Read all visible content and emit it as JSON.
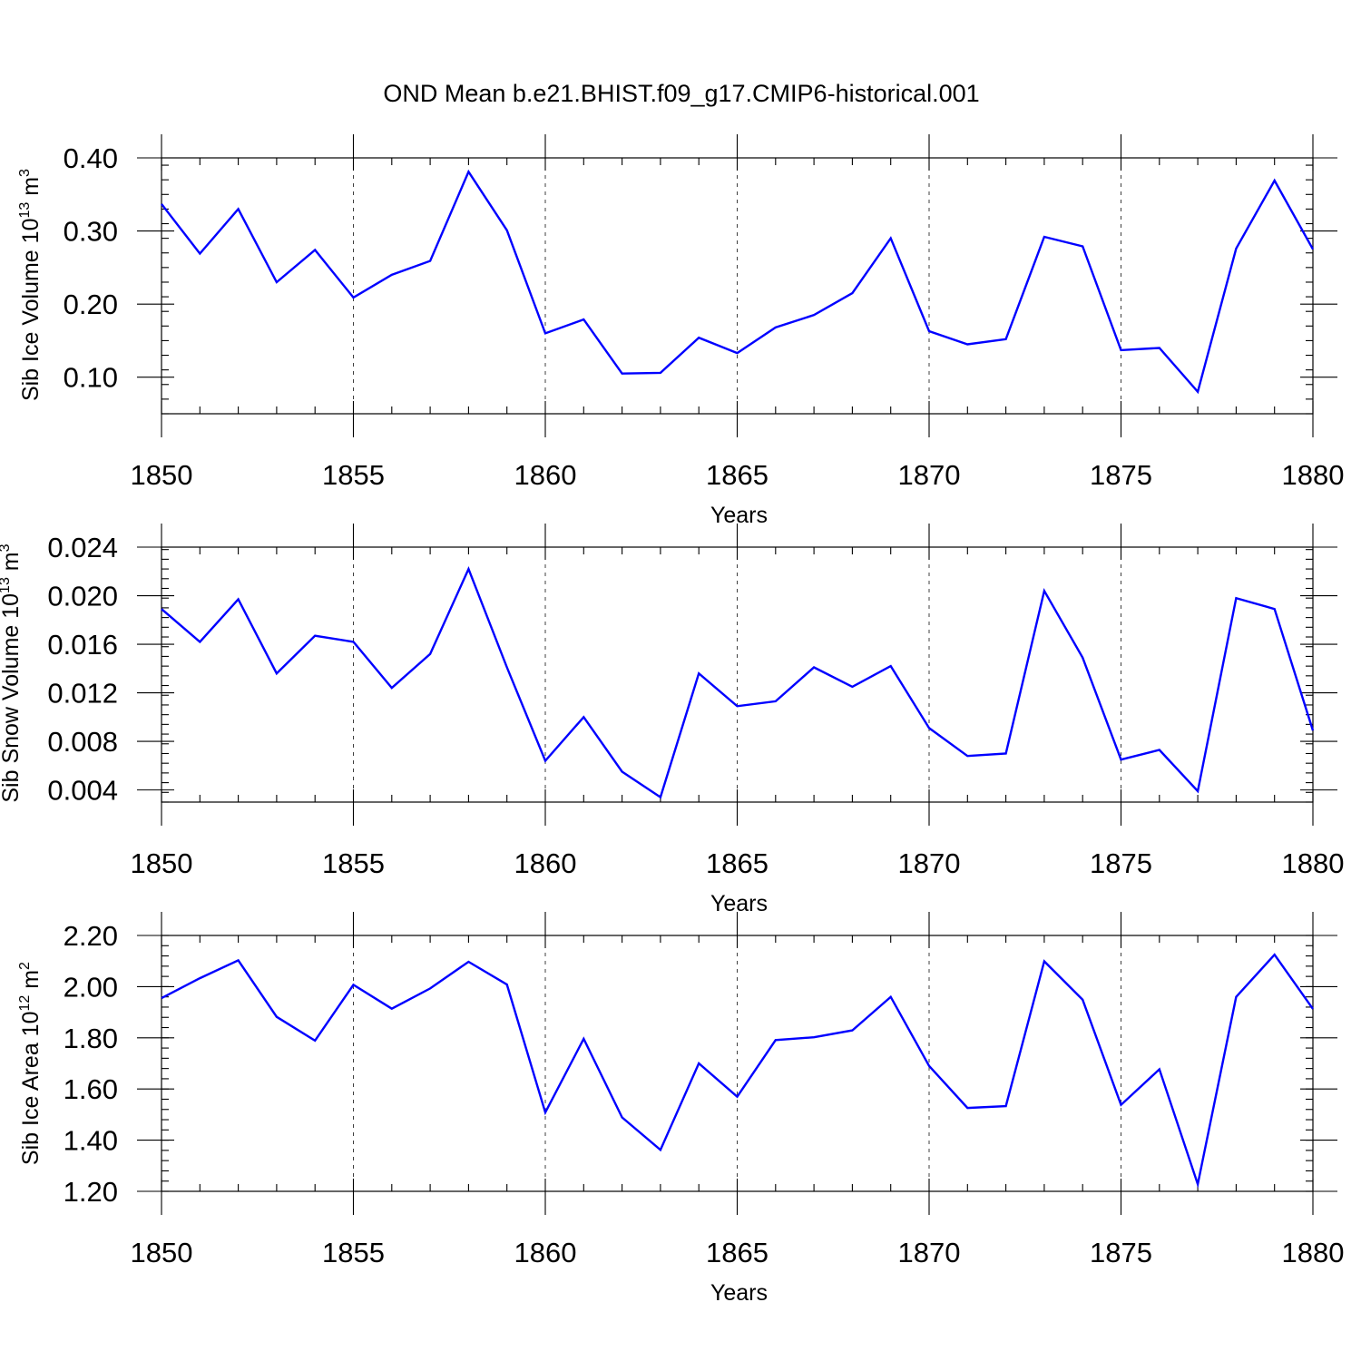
{
  "figure": {
    "title": "OND Mean b.e21.BHIST.f09_g17.CMIP6-historical.001"
  },
  "colors": {
    "line": "#0000ff",
    "axis": "#000000",
    "background": "#ffffff"
  },
  "chart_data": [
    {
      "type": "line",
      "title": "OND Mean b.e21.BHIST.f09_g17.CMIP6-historical.001",
      "xlabel": "Years",
      "ylabel": "Sib Ice Volume 10",
      "ylabel_exp": "13",
      "ylabel_unit": " m",
      "ylabel_unit_exp": "3",
      "xlim": [
        1850,
        1880
      ],
      "ylim": [
        0.05,
        0.4
      ],
      "xticks": [
        1850,
        1855,
        1860,
        1865,
        1870,
        1875,
        1880
      ],
      "xtick_labels": [
        "1850",
        "1855",
        "1860",
        "1865",
        "1870",
        "1875",
        "1880"
      ],
      "yticks": [
        0.1,
        0.2,
        0.3,
        0.4
      ],
      "ytick_labels": [
        "0.10",
        "0.20",
        "0.30",
        "0.40"
      ],
      "y_minor_step": 0.02,
      "grid": "dashed vertical lines at major x ticks",
      "x": [
        1850,
        1851,
        1852,
        1853,
        1854,
        1855,
        1856,
        1857,
        1858,
        1859,
        1860,
        1861,
        1862,
        1863,
        1864,
        1865,
        1866,
        1867,
        1868,
        1869,
        1870,
        1871,
        1872,
        1873,
        1874,
        1875,
        1876,
        1877,
        1878,
        1879,
        1880
      ],
      "values": [
        0.337,
        0.269,
        0.33,
        0.23,
        0.274,
        0.209,
        0.24,
        0.259,
        0.381,
        0.301,
        0.16,
        0.179,
        0.105,
        0.106,
        0.154,
        0.133,
        0.168,
        0.185,
        0.215,
        0.29,
        0.163,
        0.145,
        0.152,
        0.292,
        0.279,
        0.137,
        0.14,
        0.08,
        0.276,
        0.369,
        0.275
      ]
    },
    {
      "type": "line",
      "xlabel": "Years",
      "ylabel": "Sib Snow Volume 10",
      "ylabel_exp": "13",
      "ylabel_unit": " m",
      "ylabel_unit_exp": "3",
      "xlim": [
        1850,
        1880
      ],
      "ylim": [
        0.003,
        0.024
      ],
      "xticks": [
        1850,
        1855,
        1860,
        1865,
        1870,
        1875,
        1880
      ],
      "xtick_labels": [
        "1850",
        "1855",
        "1860",
        "1865",
        "1870",
        "1875",
        "1880"
      ],
      "yticks": [
        0.004,
        0.008,
        0.012,
        0.016,
        0.02,
        0.024
      ],
      "ytick_labels": [
        "0.004",
        "0.008",
        "0.012",
        "0.016",
        "0.020",
        "0.024"
      ],
      "y_minor_step": 0.0008,
      "grid": "dashed vertical lines at major x ticks",
      "x": [
        1850,
        1851,
        1852,
        1853,
        1854,
        1855,
        1856,
        1857,
        1858,
        1859,
        1860,
        1861,
        1862,
        1863,
        1864,
        1865,
        1866,
        1867,
        1868,
        1869,
        1870,
        1871,
        1872,
        1873,
        1874,
        1875,
        1876,
        1877,
        1878,
        1879,
        1880
      ],
      "values": [
        0.0189,
        0.0162,
        0.0197,
        0.0136,
        0.0167,
        0.0162,
        0.0124,
        0.0152,
        0.0222,
        0.0141,
        0.0064,
        0.01,
        0.0055,
        0.0034,
        0.0136,
        0.0109,
        0.0113,
        0.0141,
        0.0125,
        0.0142,
        0.0091,
        0.0068,
        0.007,
        0.0204,
        0.0149,
        0.0065,
        0.0073,
        0.0039,
        0.0198,
        0.0189,
        0.0089
      ]
    },
    {
      "type": "line",
      "xlabel": "Years",
      "ylabel": "Sib Ice Area 10",
      "ylabel_exp": "12",
      "ylabel_unit": " m",
      "ylabel_unit_exp": "2",
      "xlim": [
        1850,
        1880
      ],
      "ylim": [
        1.2,
        2.2
      ],
      "xticks": [
        1850,
        1855,
        1860,
        1865,
        1870,
        1875,
        1880
      ],
      "xtick_labels": [
        "1850",
        "1855",
        "1860",
        "1865",
        "1870",
        "1875",
        "1880"
      ],
      "yticks": [
        1.2,
        1.4,
        1.6,
        1.8,
        2.0,
        2.2
      ],
      "ytick_labels": [
        "1.20",
        "1.40",
        "1.60",
        "1.80",
        "2.00",
        "2.20"
      ],
      "y_minor_step": 0.04,
      "grid": "dashed vertical lines at major x ticks",
      "x": [
        1850,
        1851,
        1852,
        1853,
        1854,
        1855,
        1856,
        1857,
        1858,
        1859,
        1860,
        1861,
        1862,
        1863,
        1864,
        1865,
        1866,
        1867,
        1868,
        1869,
        1870,
        1871,
        1872,
        1873,
        1874,
        1875,
        1876,
        1877,
        1878,
        1879,
        1880
      ],
      "values": [
        1.955,
        2.033,
        2.103,
        1.882,
        1.789,
        2.007,
        1.914,
        1.993,
        2.097,
        2.008,
        1.508,
        1.796,
        1.489,
        1.362,
        1.7,
        1.57,
        1.791,
        1.802,
        1.829,
        1.96,
        1.69,
        1.526,
        1.533,
        2.099,
        1.949,
        1.538,
        1.677,
        1.228,
        1.96,
        2.125,
        1.913
      ]
    }
  ]
}
